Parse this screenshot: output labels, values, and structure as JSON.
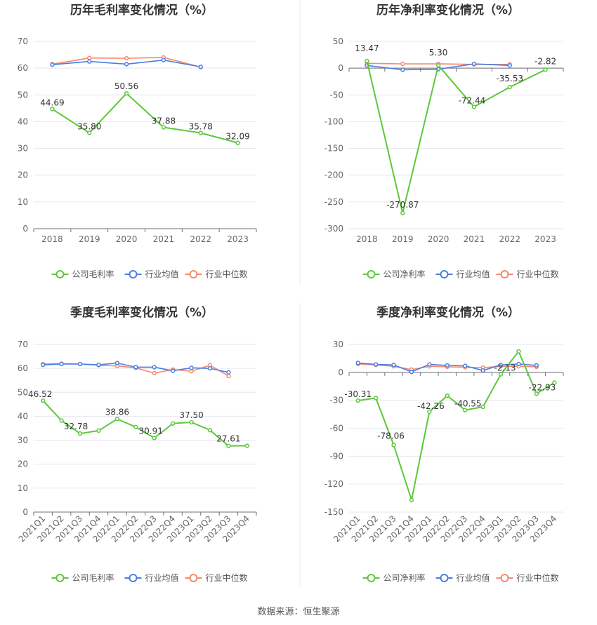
{
  "colors": {
    "company": "#5cc83b",
    "avg": "#4a7fe0",
    "median": "#f5896e",
    "grid": "#e6e6f0",
    "axis": "#6e7079"
  },
  "legend": {
    "gross": [
      "公司毛利率",
      "行业均值",
      "行业中位数"
    ],
    "net": [
      "公司净利率",
      "行业均值",
      "行业中位数"
    ]
  },
  "source": "数据来源：恒生聚源",
  "chart_data": [
    {
      "type": "line",
      "title": "历年毛利率变化情况（%）",
      "categories": [
        "2018",
        "2019",
        "2020",
        "2021",
        "2022",
        "2023"
      ],
      "ylim": [
        0,
        70
      ],
      "yticks": [
        0,
        10,
        20,
        30,
        40,
        50,
        60,
        70
      ],
      "rotate_x": false,
      "legend": "gross",
      "series": [
        {
          "name": "公司毛利率",
          "role": "company",
          "values": [
            44.69,
            35.8,
            50.56,
            37.88,
            35.78,
            32.09
          ]
        },
        {
          "name": "行业均值",
          "role": "avg",
          "values": [
            61.3,
            62.5,
            61.5,
            63.0,
            60.5,
            null
          ]
        },
        {
          "name": "行业中位数",
          "role": "median",
          "values": [
            61.5,
            63.8,
            63.7,
            64.0,
            60.4,
            null
          ]
        }
      ],
      "labels": [
        {
          "i": 0,
          "text": "44.69",
          "pos": "above"
        },
        {
          "i": 1,
          "text": "35.80",
          "pos": "above"
        },
        {
          "i": 2,
          "text": "50.56",
          "pos": "above"
        },
        {
          "i": 3,
          "text": "37.88",
          "pos": "above"
        },
        {
          "i": 4,
          "text": "35.78",
          "pos": "above"
        },
        {
          "i": 5,
          "text": "32.09",
          "pos": "above"
        }
      ]
    },
    {
      "type": "line",
      "title": "历年净利率变化情况（%）",
      "categories": [
        "2018",
        "2019",
        "2020",
        "2021",
        "2022",
        "2023"
      ],
      "ylim": [
        -300,
        50
      ],
      "yticks": [
        -300,
        -250,
        -200,
        -150,
        -100,
        -50,
        0,
        50
      ],
      "rotate_x": false,
      "legend": "net",
      "series": [
        {
          "name": "公司净利率",
          "role": "company",
          "values": [
            13.47,
            -270.87,
            5.3,
            -72.44,
            -35.53,
            -2.82
          ]
        },
        {
          "name": "行业均值",
          "role": "avg",
          "values": [
            5.0,
            -3.0,
            -2.0,
            8.0,
            5.0,
            null
          ]
        },
        {
          "name": "行业中位数",
          "role": "median",
          "values": [
            9.0,
            8.0,
            8.0,
            7.0,
            7.0,
            null
          ]
        }
      ],
      "labels": [
        {
          "i": 0,
          "text": "13.47",
          "pos": "above"
        },
        {
          "i": 1,
          "text": "-270.87",
          "pos": "above"
        },
        {
          "i": 2,
          "text": "5.30",
          "pos": "above"
        },
        {
          "i": 3,
          "text": "-72.44",
          "pos": "above"
        },
        {
          "i": 4,
          "text": "-35.53",
          "pos": "above"
        },
        {
          "i": 5,
          "text": "-2.82",
          "pos": "above"
        }
      ]
    },
    {
      "type": "line",
      "title": "季度毛利率变化情况（%）",
      "categories": [
        "2021Q1",
        "2021Q2",
        "2021Q3",
        "2021Q4",
        "2022Q1",
        "2022Q2",
        "2022Q3",
        "2022Q4",
        "2023Q1",
        "2023Q2",
        "2023Q3",
        "2023Q4"
      ],
      "ylim": [
        0,
        70
      ],
      "yticks": [
        0,
        10,
        20,
        30,
        40,
        50,
        60,
        70
      ],
      "rotate_x": true,
      "legend": "gross",
      "series": [
        {
          "name": "公司毛利率",
          "role": "company",
          "values": [
            46.52,
            38.2,
            32.78,
            34.0,
            38.86,
            35.5,
            30.91,
            37.0,
            37.5,
            34.2,
            27.61,
            27.7
          ]
        },
        {
          "name": "行业均值",
          "role": "avg",
          "values": [
            61.5,
            61.8,
            61.8,
            61.5,
            62.2,
            60.5,
            60.5,
            59.0,
            60.2,
            60.0,
            58.3,
            null
          ]
        },
        {
          "name": "行业中位数",
          "role": "median",
          "values": [
            61.8,
            62.0,
            61.8,
            61.3,
            61.0,
            60.2,
            58.0,
            59.5,
            58.8,
            61.3,
            56.8,
            null
          ]
        }
      ],
      "labels": [
        {
          "i": 0,
          "text": "46.52",
          "pos": "above"
        },
        {
          "i": 2,
          "text": "32.78",
          "pos": "above"
        },
        {
          "i": 4,
          "text": "38.86",
          "pos": "above"
        },
        {
          "i": 6,
          "text": "30.91",
          "pos": "above"
        },
        {
          "i": 8,
          "text": "37.50",
          "pos": "above"
        },
        {
          "i": 10,
          "text": "27.61",
          "pos": "above"
        }
      ]
    },
    {
      "type": "line",
      "title": "季度净利率变化情况（%）",
      "categories": [
        "2021Q1",
        "2021Q2",
        "2021Q3",
        "2021Q4",
        "2022Q1",
        "2022Q2",
        "2022Q3",
        "2022Q4",
        "2023Q1",
        "2023Q2",
        "2023Q3",
        "2023Q4"
      ],
      "ylim": [
        -150,
        30
      ],
      "yticks": [
        -150,
        -120,
        -90,
        -60,
        -30,
        0,
        30
      ],
      "rotate_x": true,
      "legend": "net",
      "series": [
        {
          "name": "公司净利率",
          "role": "company",
          "values": [
            -30.31,
            -27.5,
            -78.06,
            -137.0,
            -42.26,
            -25.0,
            -40.55,
            -37.0,
            -2.13,
            22.5,
            -22.93,
            -11.0
          ]
        },
        {
          "name": "行业均值",
          "role": "avg",
          "values": [
            10.0,
            8.5,
            8.0,
            0.5,
            8.5,
            7.5,
            7.0,
            2.0,
            8.0,
            9.0,
            7.5,
            null
          ]
        },
        {
          "name": "行业中位数",
          "role": "median",
          "values": [
            9.0,
            8.0,
            6.5,
            3.0,
            6.5,
            6.0,
            5.5,
            5.0,
            6.5,
            6.5,
            6.0,
            null
          ]
        }
      ],
      "labels": [
        {
          "i": 0,
          "text": "-30.31",
          "pos": "above"
        },
        {
          "i": 2,
          "text": "-78.06",
          "pos": "above"
        },
        {
          "i": 4,
          "text": "-42.26",
          "pos": "above"
        },
        {
          "i": 6,
          "text": "-40.55",
          "pos": "above"
        },
        {
          "i": 8,
          "text": "-2.13",
          "pos": "above"
        },
        {
          "i": 10,
          "text": "-22.93",
          "pos": "above"
        }
      ]
    }
  ]
}
